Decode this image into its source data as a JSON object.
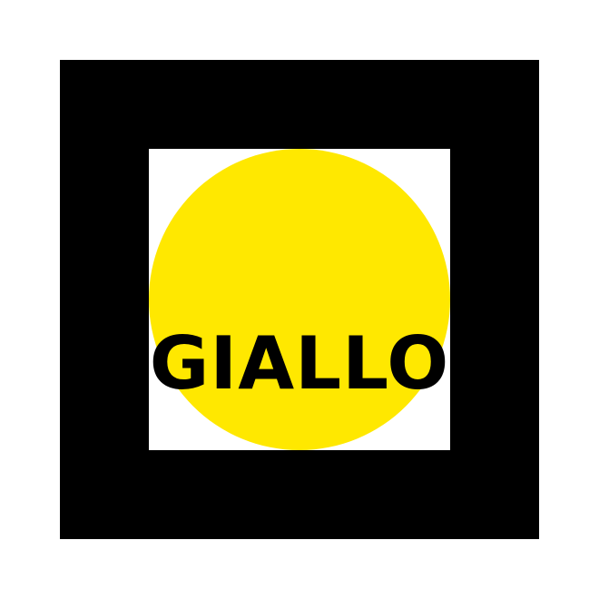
{
  "word": "GIALLO",
  "colors": {
    "background": "#ffffff",
    "frame": "#000000",
    "inner": "#ffffff",
    "circle": "#FFE800",
    "text": "#000000"
  }
}
